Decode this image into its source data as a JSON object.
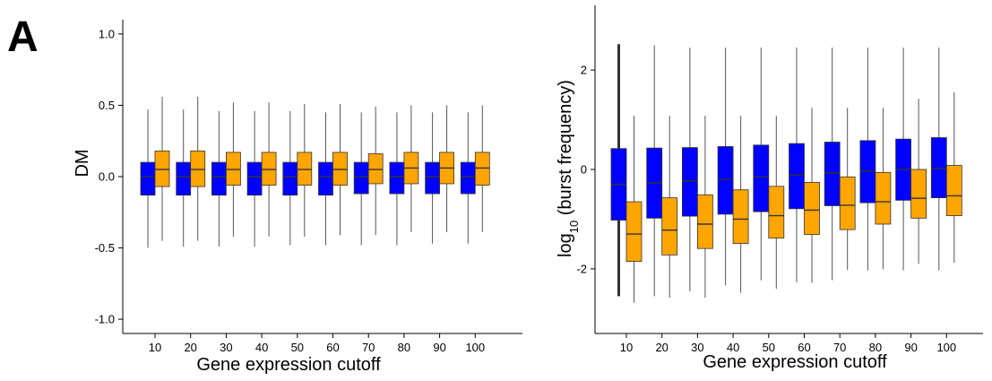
{
  "panel_label": "A",
  "colors": {
    "series1": "#0000ff",
    "series2": "#ffa500",
    "axis": "#000000",
    "whisker": "#555555"
  },
  "chart_data": [
    {
      "type": "box",
      "xlabel": "Gene expression cutoff",
      "ylabel": "DM",
      "ylim": [
        -1.1,
        1.1
      ],
      "yticks": [
        -1.0,
        -0.5,
        0.0,
        0.5,
        1.0
      ],
      "ytick_labels": [
        "-1.0",
        "-0.5",
        "0.0",
        "0.5",
        "1.0"
      ],
      "categories": [
        "10",
        "20",
        "30",
        "40",
        "50",
        "60",
        "70",
        "80",
        "90",
        "100"
      ],
      "legend": "none",
      "grid": false,
      "series": [
        {
          "color": "#0000ff",
          "boxes": [
            {
              "min": -0.5,
              "q1": -0.13,
              "median": 0.0,
              "q3": 0.1,
              "max": 0.47
            },
            {
              "min": -0.49,
              "q1": -0.13,
              "median": 0.0,
              "q3": 0.1,
              "max": 0.47
            },
            {
              "min": -0.49,
              "q1": -0.13,
              "median": 0.0,
              "q3": 0.1,
              "max": 0.46
            },
            {
              "min": -0.49,
              "q1": -0.13,
              "median": 0.0,
              "q3": 0.1,
              "max": 0.46
            },
            {
              "min": -0.48,
              "q1": -0.13,
              "median": 0.0,
              "q3": 0.1,
              "max": 0.46
            },
            {
              "min": -0.48,
              "q1": -0.13,
              "median": 0.0,
              "q3": 0.1,
              "max": 0.45
            },
            {
              "min": -0.48,
              "q1": -0.12,
              "median": 0.0,
              "q3": 0.1,
              "max": 0.45
            },
            {
              "min": -0.48,
              "q1": -0.12,
              "median": 0.0,
              "q3": 0.1,
              "max": 0.45
            },
            {
              "min": -0.47,
              "q1": -0.12,
              "median": 0.0,
              "q3": 0.1,
              "max": 0.45
            },
            {
              "min": -0.47,
              "q1": -0.12,
              "median": 0.0,
              "q3": 0.1,
              "max": 0.45
            }
          ]
        },
        {
          "color": "#ffa500",
          "boxes": [
            {
              "min": -0.45,
              "q1": -0.07,
              "median": 0.05,
              "q3": 0.18,
              "max": 0.56
            },
            {
              "min": -0.45,
              "q1": -0.07,
              "median": 0.05,
              "q3": 0.18,
              "max": 0.56
            },
            {
              "min": -0.42,
              "q1": -0.06,
              "median": 0.05,
              "q3": 0.17,
              "max": 0.52
            },
            {
              "min": -0.42,
              "q1": -0.06,
              "median": 0.05,
              "q3": 0.17,
              "max": 0.52
            },
            {
              "min": -0.42,
              "q1": -0.06,
              "median": 0.05,
              "q3": 0.17,
              "max": 0.51
            },
            {
              "min": -0.41,
              "q1": -0.06,
              "median": 0.05,
              "q3": 0.17,
              "max": 0.51
            },
            {
              "min": -0.41,
              "q1": -0.05,
              "median": 0.05,
              "q3": 0.16,
              "max": 0.49
            },
            {
              "min": -0.39,
              "q1": -0.05,
              "median": 0.06,
              "q3": 0.17,
              "max": 0.5
            },
            {
              "min": -0.39,
              "q1": -0.05,
              "median": 0.06,
              "q3": 0.17,
              "max": 0.5
            },
            {
              "min": -0.39,
              "q1": -0.06,
              "median": 0.06,
              "q3": 0.17,
              "max": 0.5
            }
          ]
        }
      ]
    },
    {
      "type": "box",
      "xlabel": "Gene expression cutoff",
      "ylabel": "log10 (burst frequency)",
      "ylim": [
        -3.3,
        3.3
      ],
      "yticks": [
        -2,
        0,
        2
      ],
      "ytick_labels": [
        "-2",
        "0",
        "2"
      ],
      "categories": [
        "10",
        "20",
        "30",
        "40",
        "50",
        "60",
        "70",
        "80",
        "90",
        "100"
      ],
      "legend": "none",
      "grid": false,
      "series": [
        {
          "color": "#0000ff",
          "boxes": [
            {
              "min": -2.55,
              "q1": -1.02,
              "median": -0.3,
              "q3": 0.42,
              "max": 2.52
            },
            {
              "min": -2.55,
              "q1": -0.98,
              "median": -0.27,
              "q3": 0.43,
              "max": 2.5
            },
            {
              "min": -2.45,
              "q1": -0.94,
              "median": -0.23,
              "q3": 0.44,
              "max": 2.45
            },
            {
              "min": -2.33,
              "q1": -0.9,
              "median": -0.2,
              "q3": 0.46,
              "max": 2.45
            },
            {
              "min": -2.23,
              "q1": -0.85,
              "median": -0.15,
              "q3": 0.49,
              "max": 2.45
            },
            {
              "min": -2.27,
              "q1": -0.79,
              "median": -0.11,
              "q3": 0.52,
              "max": 2.45
            },
            {
              "min": -2.23,
              "q1": -0.73,
              "median": -0.07,
              "q3": 0.55,
              "max": 2.45
            },
            {
              "min": -2.03,
              "q1": -0.67,
              "median": -0.03,
              "q3": 0.58,
              "max": 2.45
            },
            {
              "min": -2.03,
              "q1": -0.62,
              "median": 0.0,
              "q3": 0.61,
              "max": 2.45
            },
            {
              "min": -2.03,
              "q1": -0.57,
              "median": 0.02,
              "q3": 0.64,
              "max": 2.45
            }
          ]
        },
        {
          "color": "#ffa500",
          "boxes": [
            {
              "min": -2.68,
              "q1": -1.85,
              "median": -1.3,
              "q3": -0.65,
              "max": 1.08
            },
            {
              "min": -2.58,
              "q1": -1.72,
              "median": -1.22,
              "q3": -0.57,
              "max": 1.08
            },
            {
              "min": -2.58,
              "q1": -1.59,
              "median": -1.1,
              "q3": -0.51,
              "max": 1.08
            },
            {
              "min": -2.48,
              "q1": -1.49,
              "median": -1.0,
              "q3": -0.41,
              "max": 1.08
            },
            {
              "min": -2.4,
              "q1": -1.38,
              "median": -0.93,
              "q3": -0.34,
              "max": 1.08
            },
            {
              "min": -2.28,
              "q1": -1.31,
              "median": -0.82,
              "q3": -0.26,
              "max": 1.24
            },
            {
              "min": -2.02,
              "q1": -1.21,
              "median": -0.72,
              "q3": -0.15,
              "max": 1.24
            },
            {
              "min": -2.01,
              "q1": -1.1,
              "median": -0.65,
              "q3": -0.06,
              "max": 1.24
            },
            {
              "min": -1.9,
              "q1": -0.98,
              "median": -0.58,
              "q3": 0.0,
              "max": 1.42
            },
            {
              "min": -1.88,
              "q1": -0.93,
              "median": -0.53,
              "q3": 0.08,
              "max": 1.55
            }
          ]
        }
      ]
    }
  ]
}
